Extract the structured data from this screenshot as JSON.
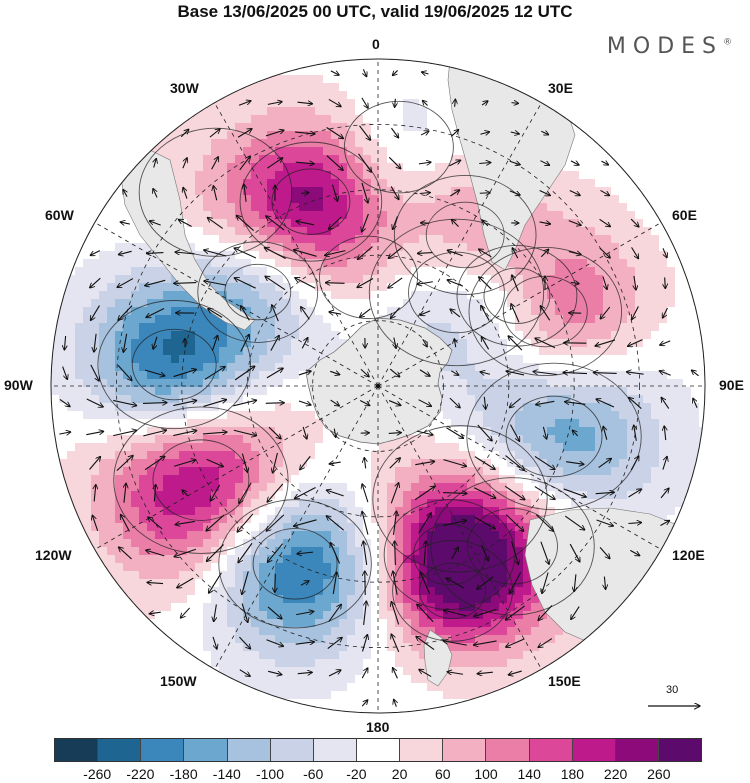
{
  "title": "Base 13/06/2025 00 UTC, valid 19/06/2025 12 UTC",
  "brand": "MODES",
  "brand_mark": "®",
  "longitude_labels": [
    "0",
    "30E",
    "60E",
    "90E",
    "120E",
    "150E",
    "180",
    "150W",
    "120W",
    "90W",
    "60W",
    "30W"
  ],
  "reference_vector": {
    "value": "30"
  },
  "colorbar": {
    "colors": [
      "#173c57",
      "#1f6592",
      "#3b86bb",
      "#6ca7cf",
      "#a6c2de",
      "#c9d2e6",
      "#e5e5f1",
      "#ffffff",
      "#f7d6dc",
      "#f2b0c2",
      "#ea7ea6",
      "#dc479a",
      "#be1a8b",
      "#8c0a7a",
      "#5c0a6c"
    ],
    "ticks": [
      "-260",
      "-220",
      "-180",
      "-140",
      "-100",
      "-60",
      "-20",
      "20",
      "60",
      "100",
      "140",
      "180",
      "220",
      "260"
    ]
  },
  "anomaly_centers": [
    {
      "lon": 30,
      "lat": -50,
      "value": 150,
      "spread": 13
    },
    {
      "lon": 40,
      "lat": -62,
      "value": -140,
      "spread": 16
    },
    {
      "lon": 57,
      "lat": -52,
      "value": -120,
      "spread": 11
    },
    {
      "lon": 66,
      "lat": -48,
      "value": 260,
      "spread": 14
    },
    {
      "lon": 106,
      "lat": -48,
      "value": -220,
      "spread": 16
    },
    {
      "lon": 140,
      "lat": -42,
      "value": 150,
      "spread": 15
    },
    {
      "lon": 157,
      "lat": -48,
      "value": 140,
      "spread": 12
    },
    {
      "lon": 144,
      "lat": -58,
      "value": 80,
      "spread": 16
    },
    {
      "lon": 160,
      "lat": -40,
      "value": 100,
      "spread": 11
    },
    {
      "lon": -155,
      "lat": -45,
      "value": -260,
      "spread": 14
    },
    {
      "lon": -118,
      "lat": -44,
      "value": 270,
      "spread": 16
    },
    {
      "lon": -84,
      "lat": -43,
      "value": -270,
      "spread": 14
    },
    {
      "lon": -52,
      "lat": -55,
      "value": -100,
      "spread": 11
    },
    {
      "lon": -20,
      "lat": -45,
      "value": 230,
      "spread": 13
    },
    {
      "lon": -40,
      "lat": -32,
      "value": 40,
      "spread": 14
    },
    {
      "lon": -5,
      "lat": -65,
      "value": 40,
      "spread": 9
    },
    {
      "lon": 5,
      "lat": -35,
      "value": -60,
      "spread": 10
    }
  ]
}
